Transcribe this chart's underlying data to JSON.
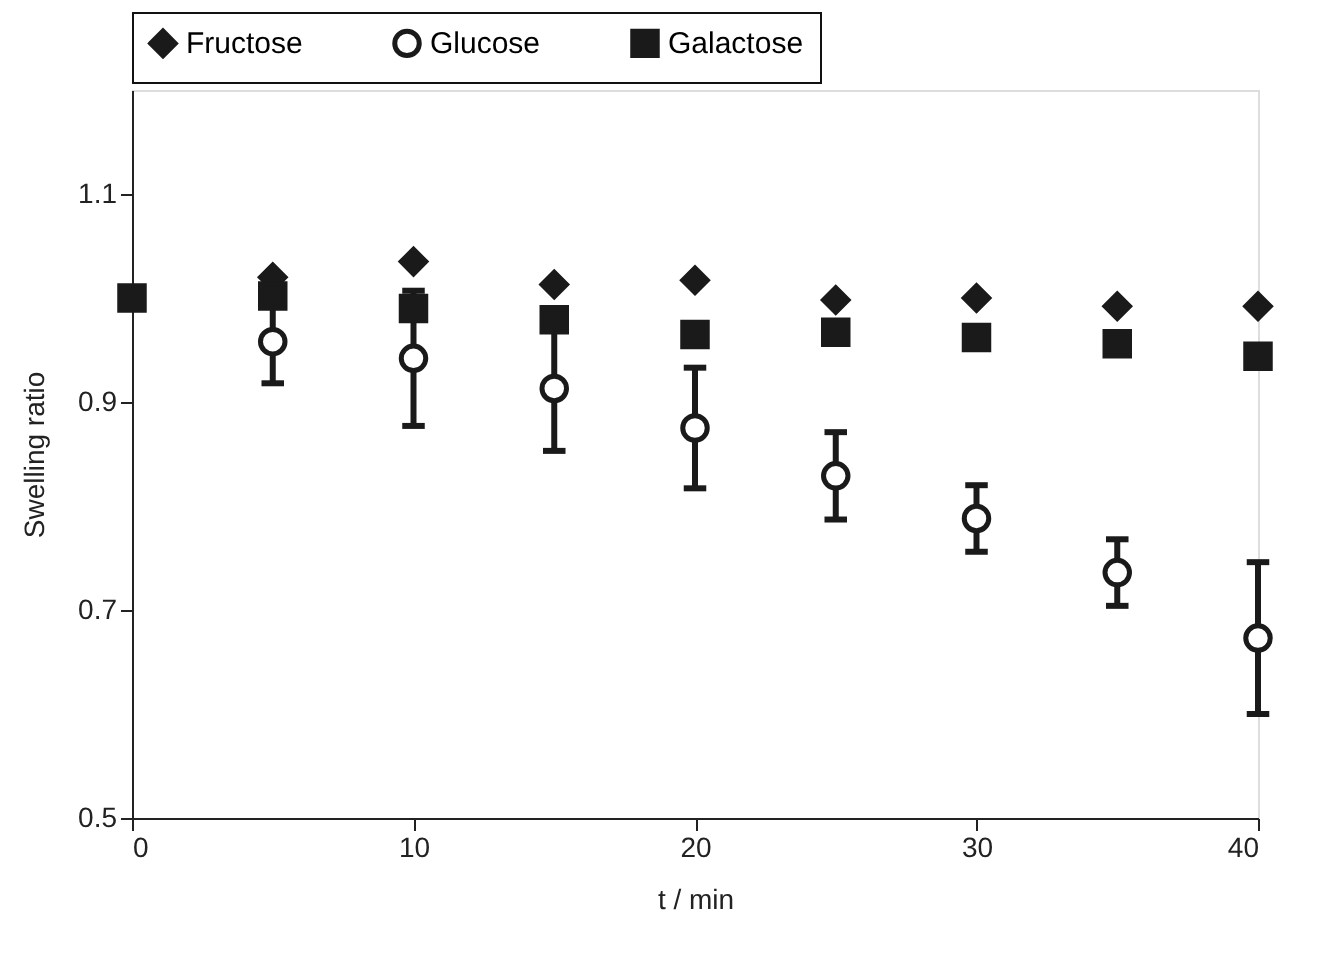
{
  "chart_data": {
    "type": "scatter",
    "xlabel": "t / min",
    "ylabel": "Swelling ratio",
    "x": [
      0,
      5,
      10,
      15,
      20,
      25,
      30,
      35,
      40
    ],
    "series": [
      {
        "name": "Fructose",
        "color": "#1a1a1a",
        "marker": "diamond",
        "values": [
          null,
          1.02,
          1.035,
          1.013,
          1.017,
          0.998,
          1.0,
          0.992,
          0.992
        ]
      },
      {
        "name": "Glucose",
        "color": "#1a1a1a",
        "marker": "circle",
        "values": [
          null,
          0.958,
          0.942,
          0.913,
          0.875,
          0.829,
          0.788,
          0.736,
          0.673
        ],
        "errors": [
          null,
          0.04,
          0.065,
          0.06,
          0.058,
          0.042,
          0.032,
          0.032,
          0.073
        ]
      },
      {
        "name": "Galactose",
        "color": "#1a1a1a",
        "marker": "square",
        "values": [
          1.0,
          1.002,
          0.99,
          0.979,
          0.965,
          0.967,
          0.962,
          0.956,
          0.944
        ]
      }
    ],
    "xlim": [
      0,
      40
    ],
    "xticks": [
      0,
      10,
      20,
      30,
      40
    ],
    "ylim": [
      0.5,
      1.2
    ],
    "yticks": [
      0.5,
      0.7,
      0.9,
      1.1
    ],
    "grid": false,
    "legend": "top"
  }
}
